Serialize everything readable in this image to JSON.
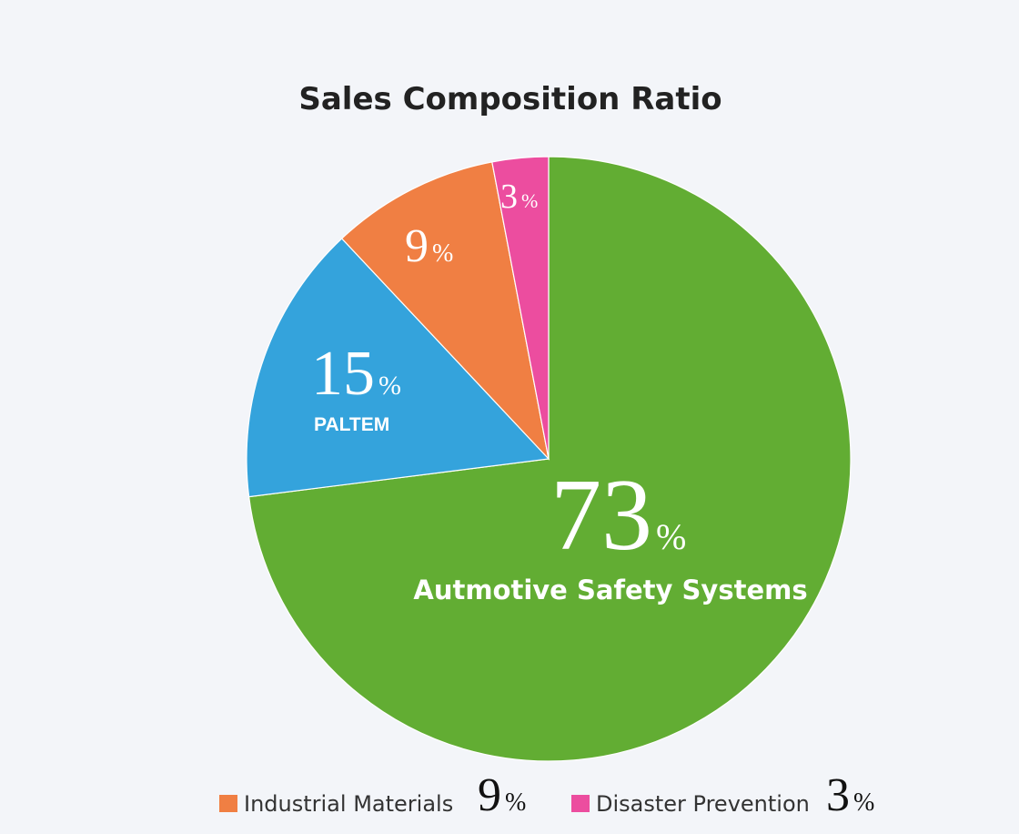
{
  "chart_data": {
    "type": "pie",
    "title": "Sales Composition Ratio",
    "categories": [
      "Autmotive Safety Systems",
      "PALTEM",
      "Industrial Materials",
      "Disaster Prevention"
    ],
    "values": [
      73,
      15,
      9,
      3
    ],
    "value_labels": [
      "73%",
      "15%",
      "9%",
      "3%"
    ],
    "colors": [
      "#62ad33",
      "#34a3dc",
      "#f07f43",
      "#ec4d9f"
    ]
  }
}
